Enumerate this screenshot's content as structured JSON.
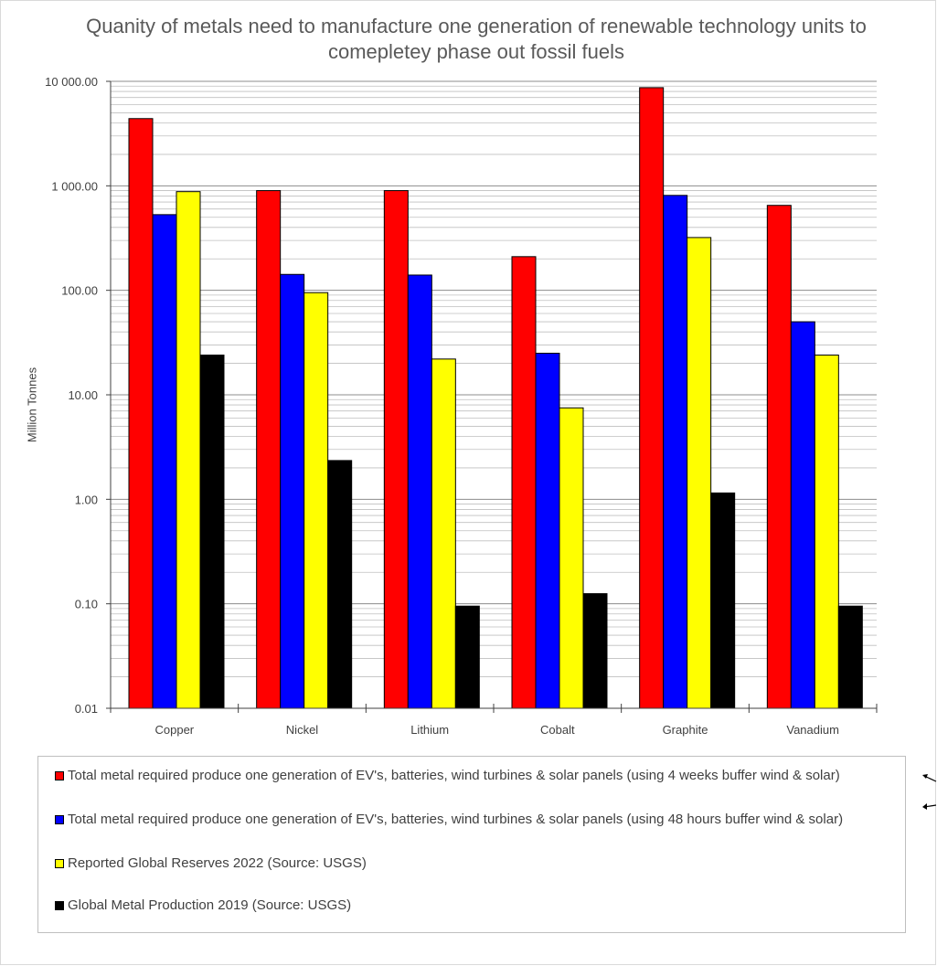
{
  "chart_data": {
    "type": "bar",
    "title": "Quanity of metals need to manufacture one generation of renewable technology units to comepletey phase out fossil fuels",
    "ylabel": "Million Tonnes",
    "xlabel": "",
    "yscale": "log",
    "ylim": [
      0.01,
      10000
    ],
    "yticks": [
      "10 000.00",
      "1 000.00",
      "100.00",
      "10.00",
      "1.00",
      "0.10",
      "0.01"
    ],
    "grid": true,
    "legend_position": "bottom",
    "categories": [
      "Copper",
      "Nickel",
      "Lithium",
      "Cobalt",
      "Graphite",
      "Vanadium"
    ],
    "series": [
      {
        "name": "Total metal required produce one generation of EV's, batteries, wind turbines & solar panels (using 4 weeks buffer wind & solar)",
        "color": "#ff0000",
        "values": [
          4400,
          900,
          900,
          210,
          8700,
          650
        ]
      },
      {
        "name": "Total metal required produce one generation of EV's, batteries, wind turbines & solar panels (using 48 hours buffer wind & solar)",
        "color": "#0000ff",
        "values": [
          530,
          142,
          140,
          25,
          810,
          50
        ]
      },
      {
        "name": "Reported Global Reserves 2022 (Source: USGS)",
        "color": "#ffff00",
        "values": [
          880,
          95,
          22,
          7.5,
          320,
          24
        ]
      },
      {
        "name": "Global Metal Production 2019 (Source: USGS)",
        "color": "#000000",
        "values": [
          24,
          2.35,
          0.095,
          0.125,
          1.15,
          0.095
        ]
      }
    ]
  }
}
